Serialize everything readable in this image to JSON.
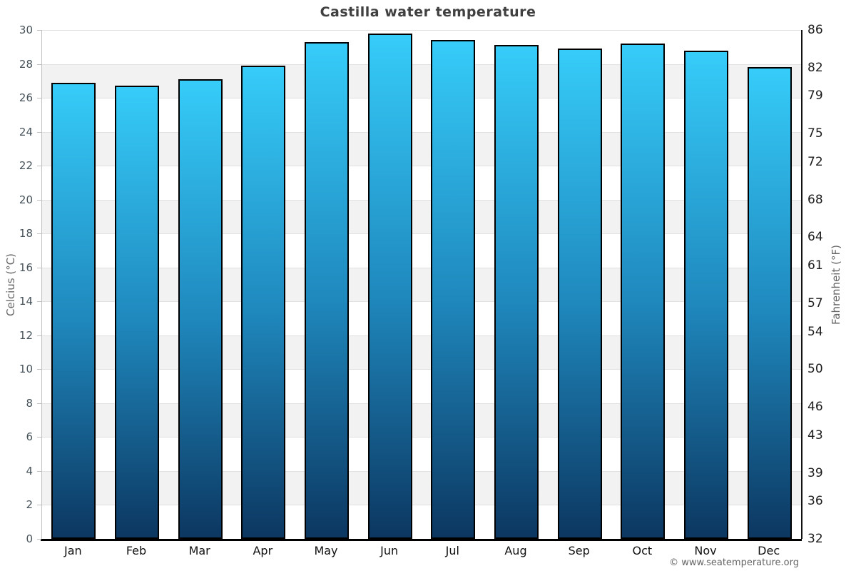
{
  "page": {
    "title": "Castilla water temperature",
    "footer": "© www.seatemperature.org"
  },
  "chart_data": {
    "type": "bar",
    "title": "Castilla water temperature",
    "categories": [
      "Jan",
      "Feb",
      "Mar",
      "Apr",
      "May",
      "Jun",
      "Jul",
      "Aug",
      "Sep",
      "Oct",
      "Nov",
      "Dec"
    ],
    "values": [
      26.9,
      26.7,
      27.1,
      27.9,
      29.3,
      29.8,
      29.4,
      29.1,
      28.9,
      29.2,
      28.8,
      27.8
    ],
    "series_name": "Water temperature",
    "xlabel": "",
    "ylabel_left": "Celcius (°C)",
    "ylabel_right": "Fahrenheit (°F)",
    "ylim": [
      0,
      30
    ],
    "yticks_left": [
      30,
      28,
      26,
      24,
      22,
      20,
      18,
      16,
      14,
      12,
      10,
      8,
      6,
      4,
      2,
      0
    ],
    "yticks_right": [
      86,
      82,
      79,
      75,
      72,
      68,
      64,
      61,
      57,
      54,
      50,
      46,
      43,
      39,
      36,
      32
    ],
    "legend": "none",
    "grid": "alternating gray bands every 2°C with light gridlines",
    "colors": {
      "bar_top": "#36ccf9",
      "bar_mid": "#1f88bd",
      "bar_bottom": "#0c3761",
      "bar_border": "#000000",
      "band_gray": "#f2f2f2",
      "gridline": "#e1e1e1",
      "axis_left": "#c0c0c0",
      "axis_right": "#111111",
      "axis_bottom": "#000000",
      "title": "#404040",
      "tick_left": "#46525a",
      "tick_right": "#1c1c1c",
      "footer": "#666666"
    }
  }
}
